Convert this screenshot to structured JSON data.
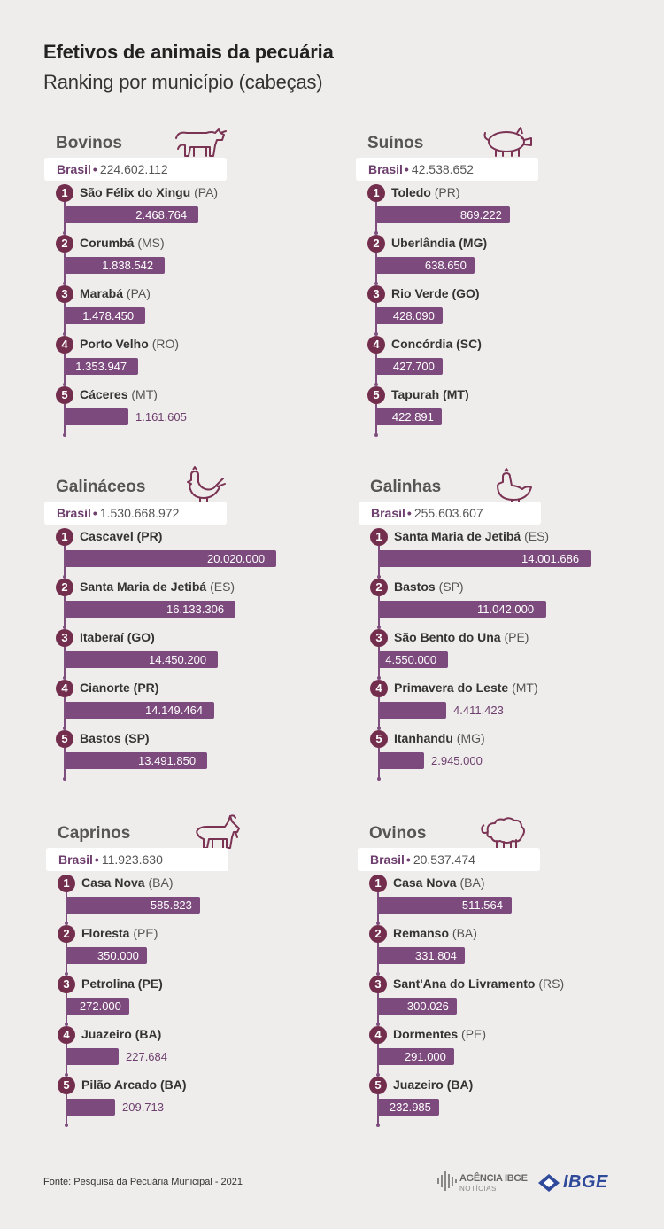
{
  "header": {
    "title": "Efetivos de animais da pecuária",
    "subtitle": "Ranking por município (cabeças)"
  },
  "footer": {
    "source": "Fonte: Pesquisa da Pecuária Municipal - 2021",
    "agencia_top": "AGÊNCIA IBGE",
    "agencia_bottom": "NOTÍCIAS",
    "ibge": "IBGE"
  },
  "colors": {
    "bar": "#7c4a7c",
    "badge": "#732d4d",
    "label": "#6d3e6e",
    "background": "#efedec",
    "ibge_blue": "#2f4a9a"
  },
  "chart_data": [
    {
      "type": "bar",
      "title": "Bovinos",
      "icon": "cow-icon",
      "total_label": "Brasil",
      "total_value": "224.602.112",
      "entries": [
        {
          "rank": "1",
          "name": "São Félix do Xingu",
          "state": "(PA)",
          "value": 2468764,
          "label": "2.468.764"
        },
        {
          "rank": "2",
          "name": "Corumbá",
          "state": "(MS)",
          "value": 1838542,
          "label": "1.838.542"
        },
        {
          "rank": "3",
          "name": "Marabá",
          "state": "(PA)",
          "value": 1478450,
          "label": "1.478.450"
        },
        {
          "rank": "4",
          "name": "Porto Velho",
          "state": "(RO)",
          "value": 1353947,
          "label": "1.353.947"
        },
        {
          "rank": "5",
          "name": "Cáceres",
          "state": "(MT)",
          "value": 1161605,
          "label": "1.161.605"
        }
      ]
    },
    {
      "type": "bar",
      "title": "Suínos",
      "icon": "pig-icon",
      "total_label": "Brasil",
      "total_value": "42.538.652",
      "entries": [
        {
          "rank": "1",
          "name": "Toledo",
          "state": "(PR)",
          "value": 869222,
          "label": "869.222"
        },
        {
          "rank": "2",
          "name": "Uberlândia (MG)",
          "state": "",
          "value": 638650,
          "label": "638.650"
        },
        {
          "rank": "3",
          "name": "Rio Verde (GO)",
          "state": "",
          "value": 428090,
          "label": "428.090"
        },
        {
          "rank": "4",
          "name": "Concórdia (SC)",
          "state": "",
          "value": 427700,
          "label": "427.700"
        },
        {
          "rank": "5",
          "name": "Tapurah (MT)",
          "state": "",
          "value": 422891,
          "label": "422.891"
        }
      ]
    },
    {
      "type": "bar",
      "title": "Galináceos",
      "icon": "rooster-icon",
      "total_label": "Brasil",
      "total_value": "1.530.668.972",
      "entries": [
        {
          "rank": "1",
          "name": "Cascavel (PR)",
          "state": "",
          "value": 20020000,
          "label": "20.020.000"
        },
        {
          "rank": "2",
          "name": "Santa Maria de Jetibá",
          "state": "(ES)",
          "value": 16133306,
          "label": "16.133.306"
        },
        {
          "rank": "3",
          "name": "Itaberaí (GO)",
          "state": "",
          "value": 14450200,
          "label": "14.450.200"
        },
        {
          "rank": "4",
          "name": "Cianorte (PR)",
          "state": "",
          "value": 14149464,
          "label": "14.149.464"
        },
        {
          "rank": "5",
          "name": "Bastos (SP)",
          "state": "",
          "value": 13491850,
          "label": "13.491.850"
        }
      ]
    },
    {
      "type": "bar",
      "title": "Galinhas",
      "icon": "hen-icon",
      "total_label": "Brasil",
      "total_value": "255.603.607",
      "entries": [
        {
          "rank": "1",
          "name": "Santa Maria de Jetibá",
          "state": "(ES)",
          "value": 14001686,
          "label": "14.001.686"
        },
        {
          "rank": "2",
          "name": "Bastos",
          "state": "(SP)",
          "value": 11042000,
          "label": "11.042.000"
        },
        {
          "rank": "3",
          "name": "São Bento do Una",
          "state": "(PE)",
          "value": 4550000,
          "label": "4.550.000"
        },
        {
          "rank": "4",
          "name": "Primavera do Leste",
          "state": "(MT)",
          "value": 4411423,
          "label": "4.411.423"
        },
        {
          "rank": "5",
          "name": "Itanhandu",
          "state": "(MG)",
          "value": 2945000,
          "label": "2.945.000"
        }
      ]
    },
    {
      "type": "bar",
      "title": "Caprinos",
      "icon": "goat-icon",
      "total_label": "Brasil",
      "total_value": "11.923.630",
      "entries": [
        {
          "rank": "1",
          "name": "Casa Nova",
          "state": "(BA)",
          "value": 585823,
          "label": "585.823"
        },
        {
          "rank": "2",
          "name": "Floresta",
          "state": "(PE)",
          "value": 350000,
          "label": "350.000"
        },
        {
          "rank": "3",
          "name": "Petrolina (PE)",
          "state": "",
          "value": 272000,
          "label": "272.000"
        },
        {
          "rank": "4",
          "name": "Juazeiro (BA)",
          "state": "",
          "value": 227684,
          "label": "227.684"
        },
        {
          "rank": "5",
          "name": "Pilão Arcado (BA)",
          "state": "",
          "value": 209713,
          "label": "209.713"
        }
      ]
    },
    {
      "type": "bar",
      "title": "Ovinos",
      "icon": "sheep-icon",
      "total_label": "Brasil",
      "total_value": "20.537.474",
      "entries": [
        {
          "rank": "1",
          "name": "Casa Nova",
          "state": "(BA)",
          "value": 511564,
          "label": "511.564"
        },
        {
          "rank": "2",
          "name": "Remanso",
          "state": "(BA)",
          "value": 331804,
          "label": "331.804"
        },
        {
          "rank": "3",
          "name": "Sant'Ana do Livramento",
          "state": "(RS)",
          "value": 300026,
          "label": "300.026"
        },
        {
          "rank": "4",
          "name": "Dormentes",
          "state": "(PE)",
          "value": 291000,
          "label": "291.000"
        },
        {
          "rank": "5",
          "name": "Juazeiro (BA)",
          "state": "",
          "value": 232985,
          "label": "232.985"
        }
      ]
    }
  ]
}
